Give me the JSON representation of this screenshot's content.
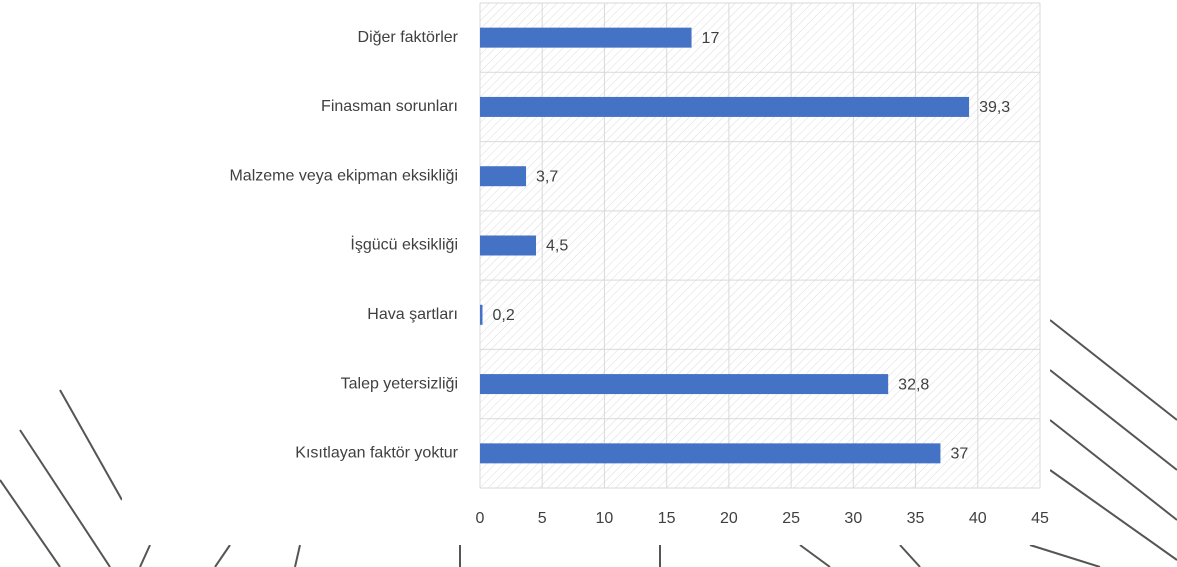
{
  "chart_data": {
    "type": "bar",
    "orientation": "horizontal",
    "categories": [
      "Diğer faktörler",
      "Finasman sorunları",
      "Malzeme veya ekipman eksikliği",
      "İşgücü eksikliği",
      "Hava şartları",
      "Talep yetersizliği",
      "Kısıtlayan faktör yoktur"
    ],
    "values": [
      17,
      39.3,
      3.7,
      4.5,
      0.2,
      32.8,
      37
    ],
    "value_labels": [
      "17",
      "39,3",
      "3,7",
      "4,5",
      "0,2",
      "32,8",
      "37"
    ],
    "color": "#4472c4",
    "xlim": [
      0,
      45
    ],
    "xticks": [
      0,
      5,
      10,
      15,
      20,
      25,
      30,
      35,
      40,
      45
    ],
    "grid": true
  }
}
